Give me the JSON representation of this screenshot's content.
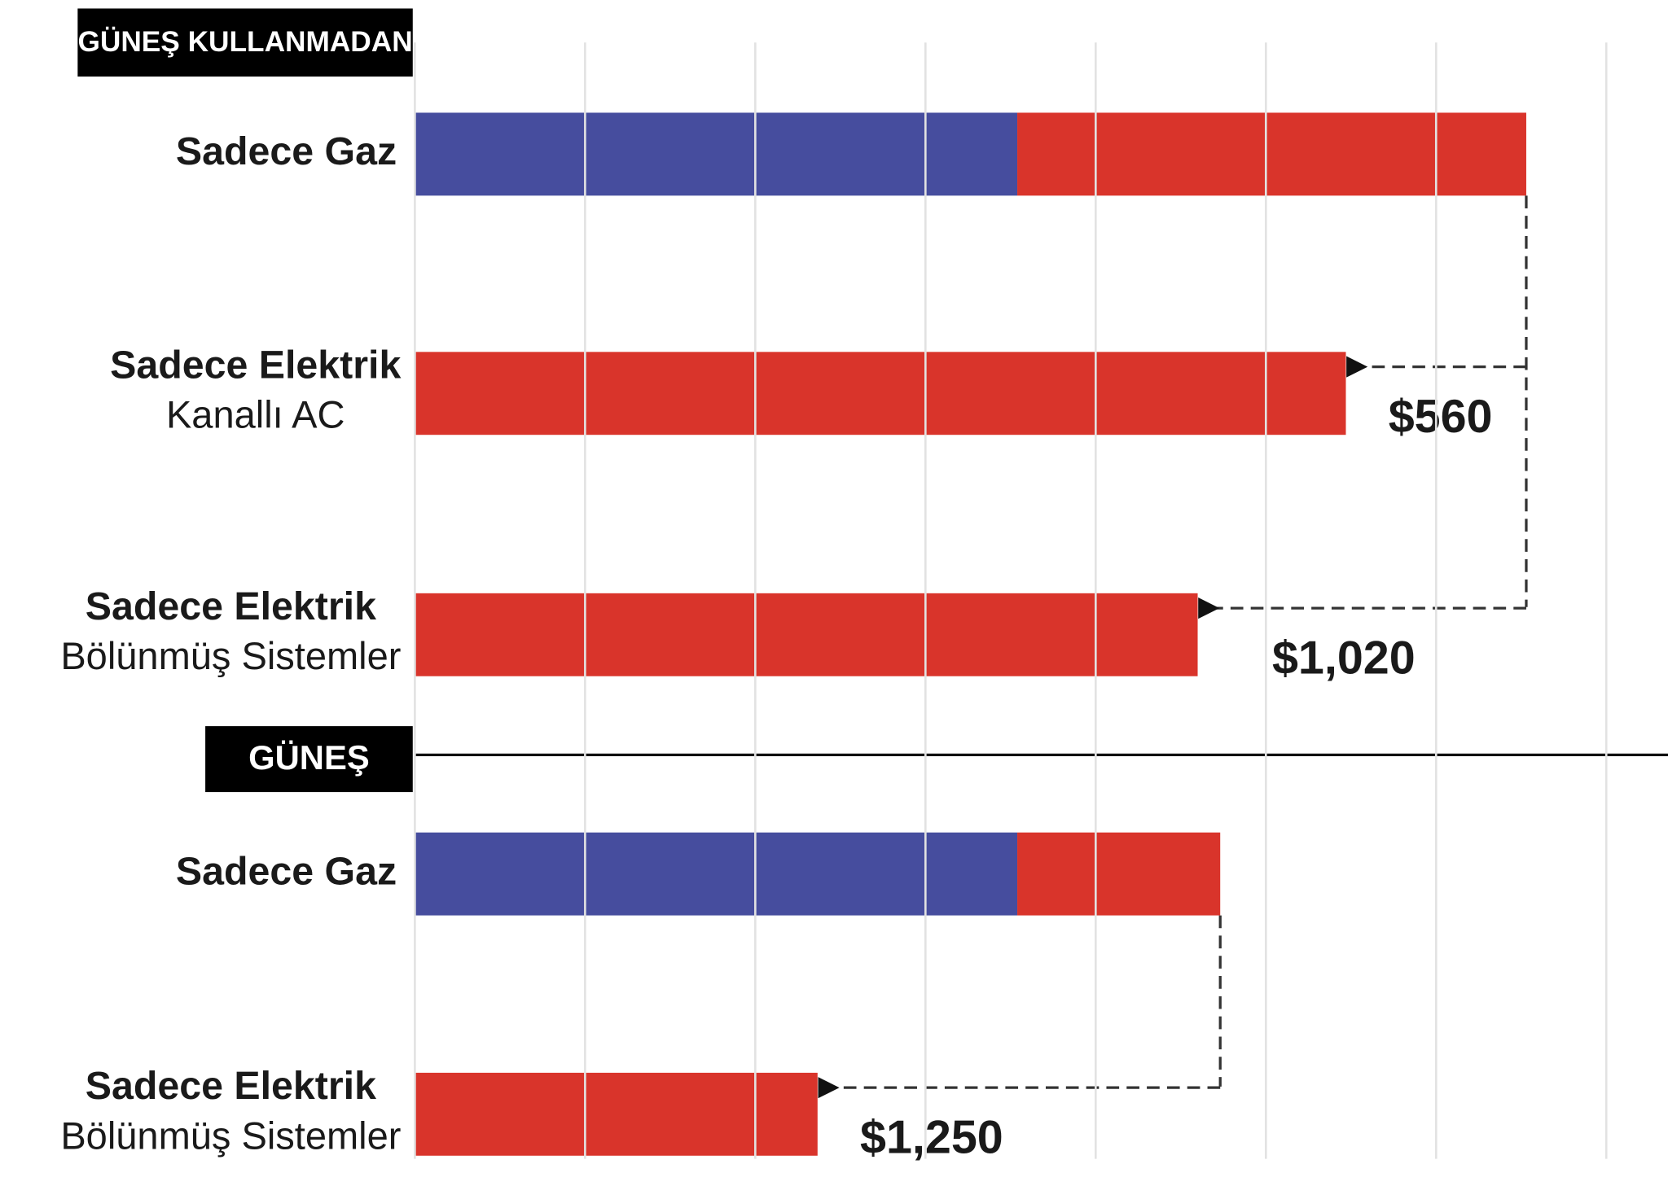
{
  "chart_data": [
    {
      "type": "bar",
      "orientation": "horizontal",
      "stacked": true,
      "title": "GÜNEŞ KULLANMADAN",
      "categories": [
        "Sadece Gaz",
        "Sadece Elektrik",
        "Sadece Elektrik"
      ],
      "sublabels": [
        null,
        "Kanallı AC",
        "Bölünmüş Sistemler"
      ],
      "series": [
        {
          "color": "#464d9e",
          "values": [
            1870,
            null,
            null
          ]
        },
        {
          "color": "#d9342b",
          "values": [
            1580,
            2890,
            2430
          ]
        }
      ],
      "xlim": [
        0,
        3890
      ],
      "grid": true,
      "annotations": [
        "$560",
        "$1,020"
      ]
    },
    {
      "type": "bar",
      "orientation": "horizontal",
      "stacked": true,
      "title": "GÜNEŞ",
      "categories": [
        "Sadece Gaz",
        "Sadece Elektrik"
      ],
      "sublabels": [
        null,
        "Bölünmüş Sistemler"
      ],
      "series": [
        {
          "color": "#464d9e",
          "values": [
            1870,
            null
          ]
        },
        {
          "color": "#d9342b",
          "values": [
            630,
            1250
          ]
        }
      ],
      "xlim": [
        0,
        3890
      ],
      "grid": true,
      "annotations": [
        "$1,250"
      ]
    }
  ]
}
